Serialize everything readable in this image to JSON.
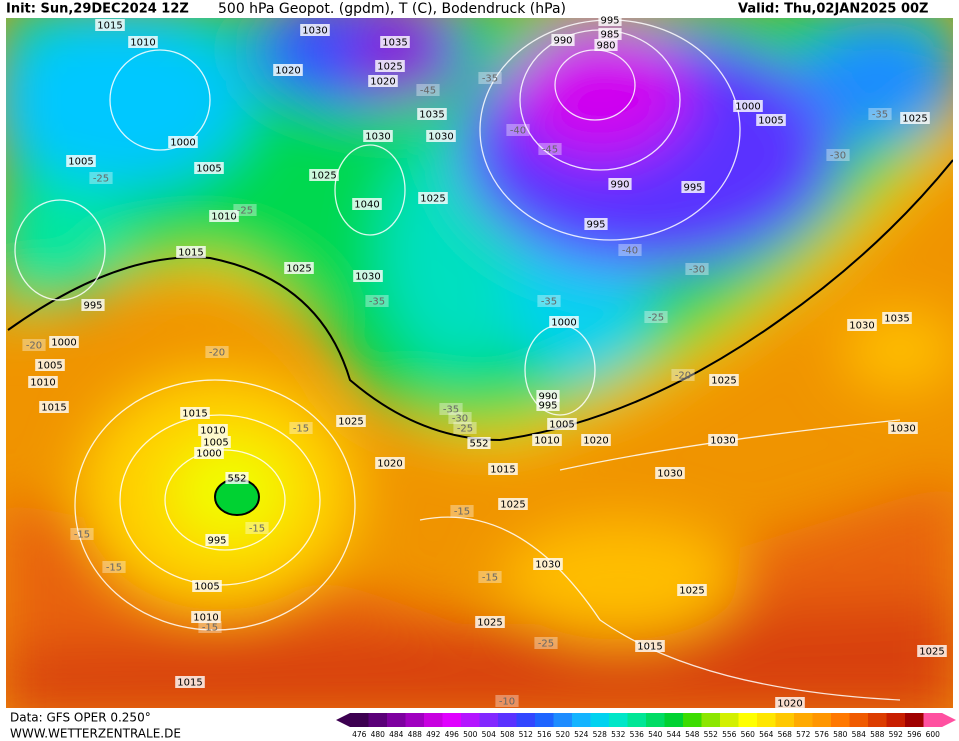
{
  "header": {
    "init": "Init: Sun,29DEC2024 12Z",
    "title": "500 hPa Geopot. (gpdm), T (C), Bodendruck (hPa)",
    "valid": "Valid: Thu,02JAN2025 00Z"
  },
  "map": {
    "labels": [
      "1015",
      "1010",
      "1030",
      "1035",
      "1020",
      "1025",
      "1020",
      "995",
      "990",
      "985",
      "980",
      "-35",
      "-45",
      "1035",
      "1030",
      "1030",
      "1000",
      "-40",
      "-45",
      "1000",
      "1005",
      "-35",
      "1025",
      "-30",
      "1005",
      "1005",
      "-25",
      "1025",
      "990",
      "995",
      "1040",
      "1025",
      "1010",
      "-25",
      "995",
      "-40",
      "1015",
      "1025",
      "-30",
      "1030",
      "-35",
      "-35",
      "995",
      "-25",
      "1000",
      "1030",
      "1035",
      "-20",
      "1000",
      "-20",
      "1005",
      "1010",
      "-20",
      "1025",
      "990",
      "995",
      "1015",
      "-35",
      "-30",
      "-25",
      "1015",
      "1010",
      "1025",
      "-15",
      "1005",
      "1000",
      "1005",
      "1010",
      "1020",
      "552",
      "1030",
      "1030",
      "1020",
      "1015",
      "1030",
      "552",
      "1025",
      "-15",
      "-15",
      "-15",
      "995",
      "1030",
      "-15",
      "-15",
      "1005",
      "1025",
      "1010",
      "-15",
      "1025",
      "-25",
      "1015",
      "1025",
      "1015",
      "-10",
      "1020"
    ]
  },
  "footer": {
    "source": "Data: GFS OPER 0.250°",
    "site": "WWW.WETTERZENTRALE.DE"
  },
  "colorbar": {
    "values": [
      476,
      480,
      484,
      488,
      492,
      496,
      500,
      504,
      508,
      512,
      516,
      520,
      524,
      528,
      532,
      536,
      540,
      544,
      548,
      552,
      556,
      560,
      564,
      568,
      572,
      576,
      580,
      584,
      588,
      592,
      596,
      600
    ],
    "colors": [
      "#3c0050",
      "#5a0078",
      "#7d009f",
      "#a000c0",
      "#c800e0",
      "#e000ff",
      "#b414ff",
      "#8228ff",
      "#5a32ff",
      "#3246ff",
      "#1e64ff",
      "#1e8cff",
      "#14b4ff",
      "#00d2f0",
      "#00e6c8",
      "#00e696",
      "#00dc64",
      "#00d232",
      "#3cdc00",
      "#8ce600",
      "#d2f000",
      "#ffff00",
      "#ffe600",
      "#ffc800",
      "#ffaa00",
      "#ff9600",
      "#ff7800",
      "#f05a00",
      "#dc3c00",
      "#c81e00",
      "#a00000",
      "#ff50a0"
    ]
  }
}
